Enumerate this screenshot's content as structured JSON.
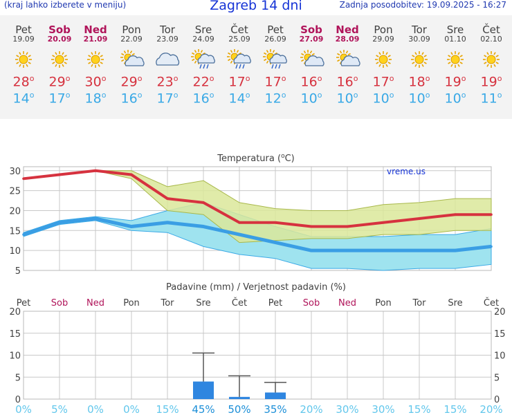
{
  "header": {
    "menu_hint": "(kraj lahko izberete v meniju)",
    "title": "Zagreb 14 dni",
    "updated": "Zadnja posodobitev: 19.09.2025 - 16:27"
  },
  "days": [
    {
      "name": "Pet",
      "date": "19.09",
      "weekend": false,
      "icon": "sunny-icon",
      "tmax": "28",
      "tmin": "14"
    },
    {
      "name": "Sob",
      "date": "20.09",
      "weekend": true,
      "icon": "sunny-icon",
      "tmax": "29",
      "tmin": "17"
    },
    {
      "name": "Ned",
      "date": "21.09",
      "weekend": true,
      "icon": "sunny-icon",
      "tmax": "30",
      "tmin": "18"
    },
    {
      "name": "Pon",
      "date": "22.09",
      "weekend": false,
      "icon": "partly-cloudy-icon",
      "tmax": "29",
      "tmin": "16"
    },
    {
      "name": "Tor",
      "date": "23.09",
      "weekend": false,
      "icon": "cloudy-icon",
      "tmax": "23",
      "tmin": "17"
    },
    {
      "name": "Sre",
      "date": "24.09",
      "weekend": false,
      "icon": "sun-rain-icon",
      "tmax": "22",
      "tmin": "16"
    },
    {
      "name": "Čet",
      "date": "25.09",
      "weekend": false,
      "icon": "sun-rain-icon",
      "tmax": "17",
      "tmin": "14"
    },
    {
      "name": "Pet",
      "date": "26.09",
      "weekend": false,
      "icon": "sun-rain-icon",
      "tmax": "17",
      "tmin": "12"
    },
    {
      "name": "Sob",
      "date": "27.09",
      "weekend": true,
      "icon": "partly-cloudy-icon",
      "tmax": "16",
      "tmin": "10"
    },
    {
      "name": "Ned",
      "date": "28.09",
      "weekend": true,
      "icon": "partly-cloudy-icon",
      "tmax": "16",
      "tmin": "10"
    },
    {
      "name": "Pon",
      "date": "29.09",
      "weekend": false,
      "icon": "sunny-icon",
      "tmax": "17",
      "tmin": "10"
    },
    {
      "name": "Tor",
      "date": "30.09",
      "weekend": false,
      "icon": "sunny-icon",
      "tmax": "18",
      "tmin": "10"
    },
    {
      "name": "Sre",
      "date": "01.10",
      "weekend": false,
      "icon": "sunny-icon",
      "tmax": "19",
      "tmin": "10"
    },
    {
      "name": "Čet",
      "date": "02.10",
      "weekend": false,
      "icon": "sunny-icon",
      "tmax": "19",
      "tmin": "11"
    }
  ],
  "colors": {
    "max": "#d6323f",
    "min": "#3aa9e6",
    "weekend": "#b0145a",
    "max_band": "#dbe89a",
    "min_band": "#9fe3ef",
    "overlap_band": "#86d48c",
    "precip_bar": "#2f86e0",
    "prob_text": "#62c7ec",
    "grid": "#c8c8c8"
  },
  "chart_data": [
    {
      "type": "line",
      "title": "Temperatura (°C)",
      "watermark": "vreme.us",
      "ylim": [
        5,
        31
      ],
      "yticks": [
        5,
        10,
        15,
        20,
        25,
        30
      ],
      "grid": true,
      "x_index": [
        0,
        1,
        2,
        3,
        4,
        5,
        6,
        7,
        8,
        9,
        10,
        11,
        12,
        13
      ],
      "series": [
        {
          "name": "max",
          "values": [
            28,
            29,
            30,
            29,
            23,
            22,
            17,
            17,
            16,
            16,
            17,
            18,
            19,
            19
          ]
        },
        {
          "name": "min",
          "values": [
            14,
            17,
            18,
            16,
            17,
            16,
            14,
            12,
            10,
            10,
            10,
            10,
            10,
            11
          ]
        }
      ],
      "bands": [
        {
          "series": "max",
          "low": [
            28,
            29,
            30,
            28,
            20,
            19,
            12,
            12.5,
            13,
            13,
            14,
            14,
            15,
            15
          ],
          "high": [
            28,
            29,
            30,
            30,
            26,
            27.5,
            22,
            20.5,
            20,
            20,
            21.5,
            22,
            23,
            23
          ]
        },
        {
          "series": "min",
          "low": [
            13.5,
            16.5,
            17.5,
            15,
            14.5,
            11,
            9,
            8,
            5.5,
            5.5,
            5,
            5.5,
            5.5,
            6.5
          ],
          "high": [
            14.5,
            17.5,
            18.5,
            17.5,
            20,
            22,
            19,
            16,
            13.5,
            13.5,
            13.5,
            14,
            14,
            15.5
          ]
        }
      ]
    },
    {
      "type": "bar",
      "title": "Padavine (mm) / Verjetnost padavin (%)",
      "categories": [
        "Pet",
        "Sob",
        "Ned",
        "Pon",
        "Tor",
        "Sre",
        "Čet",
        "Pet",
        "Sob",
        "Ned",
        "Pon",
        "Tor",
        "Sre",
        "Čet"
      ],
      "weekend": [
        false,
        true,
        true,
        false,
        false,
        false,
        false,
        false,
        true,
        true,
        false,
        false,
        false,
        false
      ],
      "ylim": [
        0,
        20
      ],
      "yticks": [
        0,
        5,
        10,
        15,
        20
      ],
      "values": [
        0,
        0,
        0,
        0,
        0,
        4,
        0.5,
        1.5,
        0,
        0,
        0,
        0,
        0,
        0
      ],
      "error_high": [
        null,
        null,
        null,
        null,
        null,
        10.5,
        5.3,
        3.8,
        null,
        null,
        null,
        null,
        null,
        null
      ],
      "probability": [
        "0%",
        "5%",
        "0%",
        "0%",
        "15%",
        "45%",
        "50%",
        "35%",
        "20%",
        "30%",
        "30%",
        "15%",
        "15%",
        "20%"
      ],
      "probability_bold": [
        false,
        false,
        false,
        false,
        false,
        true,
        true,
        true,
        false,
        false,
        false,
        false,
        false,
        false
      ]
    }
  ]
}
